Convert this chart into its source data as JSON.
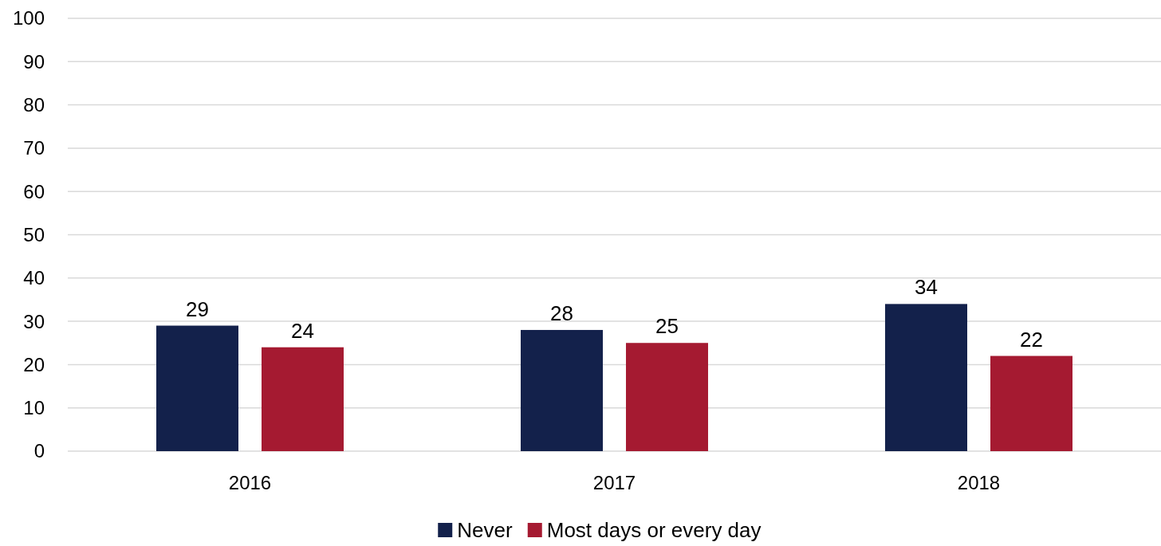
{
  "chart_data": {
    "type": "bar",
    "categories": [
      "2016",
      "2017",
      "2018"
    ],
    "series": [
      {
        "name": "Never",
        "color": "#13214b",
        "values": [
          29,
          28,
          34
        ]
      },
      {
        "name": "Most days or every day",
        "color": "#a51a31",
        "values": [
          24,
          25,
          22
        ]
      }
    ],
    "ylim": [
      0,
      100
    ],
    "yticks": [
      0,
      10,
      20,
      30,
      40,
      50,
      60,
      70,
      80,
      90,
      100
    ],
    "grid": "y",
    "legend": "bottom",
    "data_labels": true
  }
}
